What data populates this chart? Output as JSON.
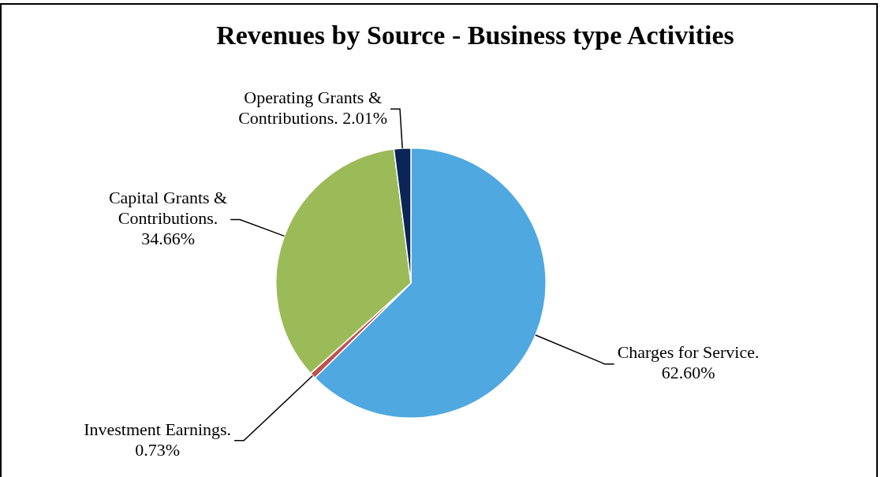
{
  "chart_data": {
    "type": "pie",
    "title": "Revenues by Source - Business type Activities",
    "categories": [
      "Charges for Service.",
      "Investment Earnings.",
      "Capital Grants & Contributions.",
      "Operating Grants & Contributions."
    ],
    "values": [
      62.6,
      0.73,
      34.66,
      2.01
    ],
    "value_labels": [
      "62.60%",
      "0.73%",
      "34.66%",
      "2.01%"
    ],
    "colors": [
      "#4fa8e0",
      "#c0504d",
      "#9bbb59",
      "#0c2557"
    ],
    "legend": false
  }
}
